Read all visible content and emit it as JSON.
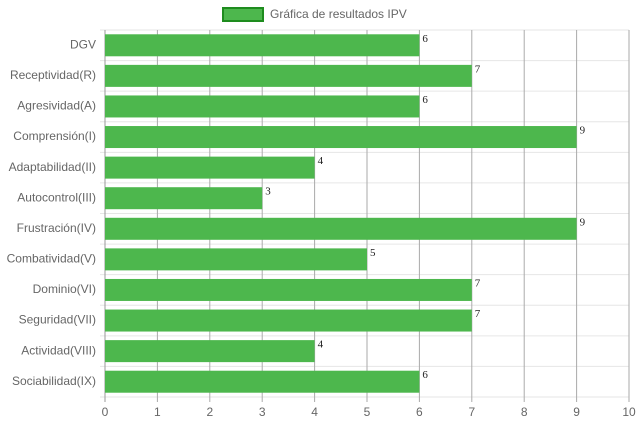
{
  "chart_data": {
    "type": "bar",
    "orientation": "horizontal",
    "categories": [
      "DGV",
      "Receptividad(R)",
      "Agresividad(A)",
      "Comprensión(I)",
      "Adaptabilidad(II)",
      "Autocontrol(III)",
      "Frustración(IV)",
      "Combatividad(V)",
      "Dominio(VI)",
      "Seguridad(VII)",
      "Actividad(VIII)",
      "Sociabilidad(IX)"
    ],
    "series": [
      {
        "name": "Gráfica de resultados IPV",
        "color": "#4db74d",
        "border_color": "#1e8c1e",
        "values": [
          6,
          7,
          6,
          9,
          4,
          3,
          9,
          5,
          7,
          7,
          4,
          6
        ]
      }
    ],
    "xlim": [
      0,
      10
    ],
    "xticks": [
      0,
      1,
      2,
      3,
      4,
      5,
      6,
      7,
      8,
      9,
      10
    ],
    "grid": true,
    "legend": "top",
    "data_labels": true
  }
}
